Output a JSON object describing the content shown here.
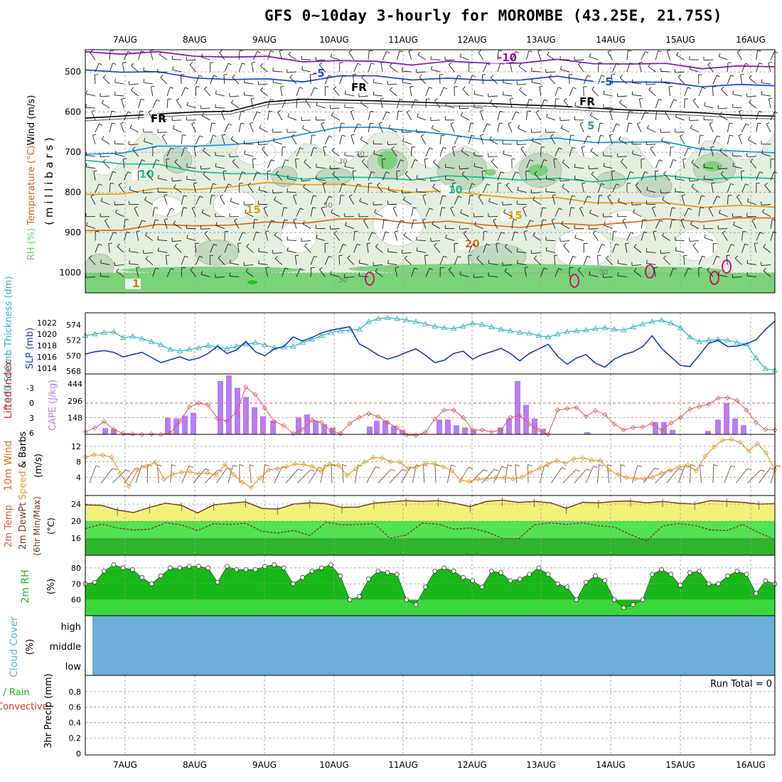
{
  "title": "GFS 0~10day 3-hourly for MOROMBE (43.25E, 21.75S)",
  "colors": {
    "rh_light": "#e4efe0",
    "rh_mid": "#c2d9bf",
    "rh_dark": "#a8bca6",
    "rh_green": "#6ecf6e",
    "t_neg10": "#8a1bc4",
    "t_neg5": "#1e4fd8",
    "t_fr": "#000000",
    "t_5": "#1a9ae0",
    "t_10": "#1ec49a",
    "t_15": "#e8a21a",
    "t_20": "#e0701a",
    "t_25": "#d0146e",
    "thickness": "#2cb5c8",
    "slp": "#1a3cc8",
    "cape": "#b87cf0",
    "lifted": "#e05555",
    "wind": "#e8962a",
    "barb": "#7a5a3a",
    "temp_fill": "#f2f27a",
    "temp_line": "#7a3a2a",
    "dew_band1": "#2db52d",
    "dew_band2": "#52e352",
    "rh2_fill1": "#18b818",
    "rh2_fill2": "#3ad83a",
    "cloud": "#6baed6"
  },
  "chart_data": [
    {
      "panel": "upper_air",
      "type": "heatmap",
      "ylabel_parts": [
        "RH (%)",
        "Temperature (°C)",
        "Wind (m/s)"
      ],
      "ylabel2": "( m i l l i b a r s )",
      "yticks": [
        500,
        600,
        700,
        800,
        900,
        1000
      ],
      "ylim": [
        1050,
        445
      ],
      "x_dates": [
        "7AUG",
        "8AUG",
        "9AUG",
        "10AUG",
        "11AUG",
        "12AUG",
        "13AUG",
        "14AUG",
        "15AUG",
        "16AUG"
      ],
      "contour_labels": [
        "-10",
        "-5",
        "-5",
        "FR",
        "FR",
        "FR",
        "5",
        "10",
        "10",
        "15",
        "15",
        "20",
        "1"
      ],
      "rh_labels": [
        "10",
        "30",
        "50",
        "30",
        "30"
      ],
      "isotherms": [
        {
          "name": "-10",
          "p": [
            450,
            452,
            455,
            458,
            462,
            466,
            470,
            474,
            476,
            478,
            478,
            477,
            475,
            474,
            476,
            480,
            483,
            487,
            488,
            489
          ]
        },
        {
          "name": "-5",
          "p": [
            495,
            497,
            505,
            512,
            518,
            522,
            520,
            512,
            512,
            515,
            520,
            520,
            517,
            516,
            520,
            525,
            530,
            532,
            534,
            536
          ]
        },
        {
          "name": "FR",
          "p": [
            615,
            610,
            605,
            600,
            598,
            575,
            568,
            570,
            572,
            575,
            578,
            578,
            582,
            585,
            590,
            595,
            598,
            602,
            608,
            610
          ]
        },
        {
          "name": "5",
          "p": [
            705,
            698,
            690,
            682,
            680,
            678,
            650,
            640,
            640,
            642,
            660,
            668,
            668,
            670,
            672,
            675,
            678,
            688,
            700,
            703
          ]
        },
        {
          "name": "10",
          "p": [
            720,
            725,
            735,
            745,
            752,
            758,
            762,
            764,
            765,
            764,
            763,
            762,
            766,
            770,
            770,
            765,
            762,
            763,
            765,
            767
          ]
        },
        {
          "name": "15",
          "p": [
            805,
            800,
            795,
            790,
            785,
            780,
            776,
            782,
            790,
            795,
            800,
            806,
            812,
            818,
            822,
            826,
            830,
            832,
            835,
            838
          ]
        },
        {
          "name": "20",
          "p": [
            895,
            890,
            885,
            880,
            880,
            878,
            872,
            868,
            868,
            872,
            876,
            880,
            884,
            882,
            878,
            874,
            870,
            868,
            866,
            865
          ]
        }
      ]
    },
    {
      "panel": "thickness_slp",
      "type": "line",
      "ylabel_left": "1000-500mb Thickness (dm)",
      "ylabel_right": "SLP (mb)",
      "yticks_left": [
        568,
        570,
        572,
        574
      ],
      "yticks_right": [
        1014,
        1016,
        1018,
        1020,
        1022
      ],
      "series": [
        {
          "name": "Thickness (dm)",
          "values": [
            572.6,
            572.8,
            573.0,
            573.1,
            572.3,
            572.5,
            572.2,
            571.8,
            571.4,
            570.8,
            570.6,
            570.8,
            571.0,
            571.3,
            571.1,
            570.9,
            571.2,
            571.5,
            571.7,
            571.4,
            571.0,
            571.1,
            571.2,
            571.7,
            572.1,
            572.6,
            573.0,
            573.2,
            573.3,
            573.4,
            574.4,
            574.8,
            574.9,
            574.8,
            574.6,
            574.4,
            574.1,
            573.8,
            573.6,
            573.5,
            573.8,
            574.2,
            574.0,
            573.7,
            573.4,
            573.2,
            573.0,
            572.9,
            572.6,
            572.4,
            572.8,
            573.1,
            573.2,
            573.3,
            573.5,
            573.6,
            573.4,
            573.3,
            573.7,
            574.1,
            574.4,
            574.6,
            574.2,
            573.6,
            572.4,
            571.8,
            572.0,
            572.1,
            572.0,
            571.7,
            571.5,
            569.7,
            568.3,
            568.1
          ]
        },
        {
          "name": "SLP (mb)",
          "values": [
            1016.5,
            1016.9,
            1017.1,
            1016.8,
            1016.0,
            1016.4,
            1016.8,
            1015.9,
            1015.0,
            1015.5,
            1016.0,
            1015.4,
            1015.8,
            1016.6,
            1017.9,
            1016.6,
            1017.2,
            1018.7,
            1016.9,
            1016.2,
            1017.4,
            1017.8,
            1019.5,
            1018.8,
            1019.4,
            1020.2,
            1020.7,
            1021.0,
            1021.3,
            1018.3,
            1017.4,
            1016.3,
            1015.6,
            1016.1,
            1016.8,
            1017.4,
            1016.3,
            1015.0,
            1015.4,
            1016.6,
            1017.0,
            1015.6,
            1016.4,
            1016.9,
            1017.5,
            1016.6,
            1015.3,
            1016.6,
            1017.4,
            1018.2,
            1016.1,
            1014.7,
            1015.8,
            1016.4,
            1014.9,
            1014.2,
            1015.6,
            1016.4,
            1016.9,
            1017.8,
            1019.7,
            1017.5,
            1016.0,
            1014.5,
            1014.3,
            1016.3,
            1018.4,
            1018.9,
            1017.8,
            1017.9,
            1018.3,
            1019.0,
            1020.8,
            1022.3
          ]
        }
      ]
    },
    {
      "panel": "cape_li",
      "type": "bar",
      "ylabel_left": "Lifted Index",
      "ylabel_right": "CAPE (J/kg)",
      "yticks_left": [
        -3,
        0,
        3,
        6
      ],
      "yticks_right": [
        148,
        296,
        444
      ],
      "series": [
        {
          "name": "CAPE (J/kg)",
          "values": [
            0,
            0,
            0,
            0,
            0,
            0,
            0,
            0,
            0,
            0,
            0,
            0,
            30,
            10,
            0,
            0,
            0,
            0,
            0,
            20,
            70,
            40,
            0,
            0,
            0,
            0,
            0,
            0,
            0,
            0,
            0,
            40,
            60,
            80,
            60,
            20,
            0,
            0,
            0,
            0,
            0,
            0,
            0,
            0,
            0,
            0,
            0,
            0,
            20,
            0,
            0,
            0,
            0,
            0,
            0,
            0,
            0,
            0,
            0,
            0,
            0,
            0,
            0,
            0,
            0,
            0,
            0,
            0,
            0,
            0,
            0,
            0,
            0,
            0
          ]
        },
        {
          "name": "Lifted Index",
          "values": [
            5.8,
            5.0,
            3.7,
            5.3,
            6.1,
            6.2,
            6.3,
            6.2,
            6.3,
            6.0,
            3.7,
            0.8,
            0.0,
            0.4,
            3.1,
            3.6,
            1.8,
            -3.2,
            -1.7,
            1.0,
            3.7,
            4.5,
            6.1,
            5.3,
            3.4,
            3.9,
            5.6,
            6.1,
            4.1,
            2.9,
            2.1,
            2.7,
            3.9,
            5.0,
            6.4,
            6.5,
            5.9,
            3.2,
            1.4,
            1.4,
            2.9,
            5.4,
            5.4,
            5.8,
            5.4,
            2.9,
            2.5,
            4.2,
            5.4,
            6.3,
            1.4,
            1.1,
            0.9,
            2.7,
            1.5,
            2.3,
            4.2,
            5.4,
            4.9,
            4.8,
            4.1,
            5.5,
            4.0,
            2.9,
            1.2,
            0.7,
            0.2,
            -1.0,
            -1.1,
            -0.5,
            1.4,
            3.9,
            5.3,
            5.4
          ]
        }
      ]
    },
    {
      "panel": "wind10m",
      "type": "line",
      "ylabel": "10m Wind Speed & Barbs (m/s)",
      "yticks": [
        4,
        8,
        12
      ],
      "series": [
        {
          "name": "10m Wind Speed (m/s)",
          "values": [
            9.2,
            9.8,
            9.7,
            9.2,
            5.0,
            1.7,
            5.9,
            6.8,
            7.9,
            3.5,
            4.8,
            5.3,
            5.4,
            4.9,
            5.1,
            4.6,
            7.3,
            4.7,
            2.7,
            1.3,
            3.8,
            5.9,
            6.2,
            6.7,
            7.4,
            7.3,
            6.8,
            5.5,
            7.4,
            7.1,
            4.5,
            6.2,
            7.9,
            9.1,
            9.0,
            8.0,
            8.0,
            6.2,
            6.8,
            7.5,
            7.5,
            6.7,
            5.7,
            3.2,
            2.9,
            3.5,
            3.6,
            3.9,
            3.9,
            3.6,
            4.0,
            5.3,
            6.3,
            7.4,
            8.3,
            7.6,
            8.8,
            9.0,
            8.4,
            8.3,
            5.9,
            4.7,
            3.9,
            3.6,
            3.6,
            4.0,
            5.1,
            5.8,
            6.6,
            7.1,
            5.7,
            9.4,
            11.8,
            13.6,
            13.8,
            13.1,
            10.8,
            12.7,
            10.3,
            5.9
          ]
        }
      ]
    },
    {
      "panel": "temp2m",
      "type": "area",
      "ylabel": "2m Temp 2m DewPt (6hr Min/Max) (°C)",
      "yticks": [
        16,
        20,
        24
      ],
      "series": [
        {
          "name": "2m Temp (°C)",
          "values": [
            23.8,
            23.7,
            22.6,
            22.0,
            23.2,
            24.2,
            23.7,
            21.9,
            23.8,
            24.2,
            24.5,
            23.0,
            22.8,
            24.0,
            24.3,
            24.1,
            23.2,
            23.3,
            24.2,
            24.5,
            24.8,
            24.6,
            24.8,
            24.2,
            23.4,
            24.6,
            24.9,
            24.4,
            24.6,
            24.3,
            23.0,
            24.4,
            24.3,
            24.6,
            24.7,
            24.3,
            24.6,
            24.2,
            24.0,
            24.8,
            24.6,
            24.4,
            24.0,
            24.1
          ]
        },
        {
          "name": "2m DewPt (°C)",
          "values": [
            18.2,
            19.3,
            18.4,
            17.9,
            18.1,
            19.6,
            19.1,
            17.8,
            19.4,
            19.2,
            19.5,
            17.6,
            17.2,
            17.8,
            16.6,
            19.7,
            19.1,
            19.2,
            19.4,
            16.0,
            16.7,
            19.5,
            19.3,
            18.1,
            18.4,
            17.5,
            16.0,
            15.8,
            19.1,
            19.6,
            19.2,
            19.6,
            18.9,
            18.6,
            16.8,
            15.3,
            18.9,
            19.4,
            19.0,
            17.9,
            17.8,
            19.2,
            17.3,
            15.7
          ]
        }
      ]
    },
    {
      "panel": "rh2m",
      "type": "area",
      "ylabel": "2m RH (%)",
      "yticks": [
        60,
        70,
        80
      ],
      "series": [
        {
          "name": "2m RH (%)",
          "values": [
            70,
            71,
            78,
            82,
            80,
            79,
            74,
            70,
            75,
            80,
            80,
            81,
            81,
            80,
            71,
            81,
            79,
            79,
            79,
            81,
            82,
            80,
            70,
            74,
            78,
            80,
            82,
            75,
            60,
            62,
            73,
            78,
            77,
            76,
            60,
            57,
            68,
            78,
            80,
            78,
            74,
            72,
            68,
            78,
            77,
            72,
            73,
            76,
            80,
            76,
            70,
            68,
            60,
            71,
            75,
            72,
            60,
            55,
            57,
            60,
            76,
            79,
            76,
            69,
            77,
            78,
            70,
            70,
            75,
            78,
            76,
            64,
            72,
            70
          ]
        }
      ]
    },
    {
      "panel": "cloud_cover",
      "type": "area",
      "ylabel": "Cloud Cover (%)",
      "levels": [
        "high",
        "middle",
        "low"
      ]
    },
    {
      "panel": "precip",
      "type": "bar",
      "ylabel_left": "Total / Rain Convective",
      "ylabel": "3hr Precip (mm)",
      "yticks": [
        0,
        0.2,
        0.4,
        0.6,
        0.8
      ],
      "annotation": "Run Total = 0",
      "series": [
        {
          "name": "Total / Rain",
          "values": []
        },
        {
          "name": "Convective",
          "values": []
        }
      ]
    }
  ]
}
